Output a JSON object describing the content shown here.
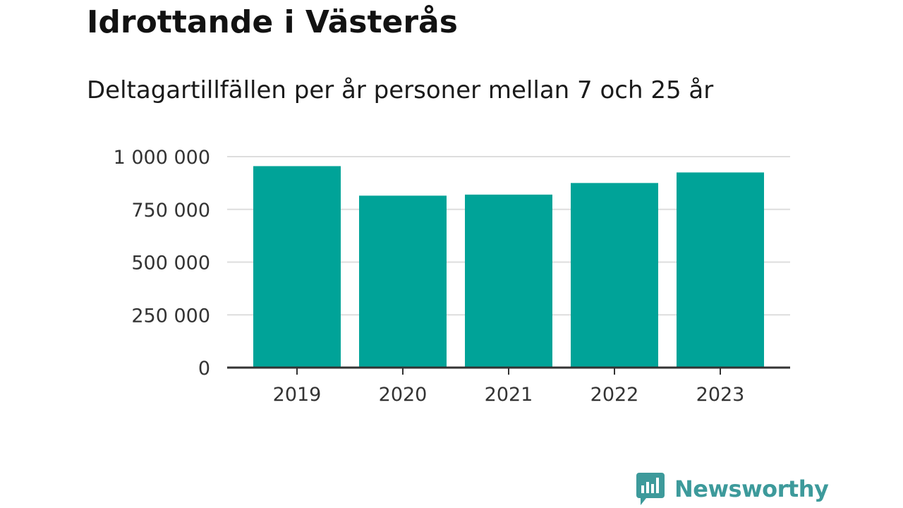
{
  "header": {
    "title": "Idrottande i Västerås",
    "subtitle": "Deltagartillfällen per år personer mellan 7 och 25 år"
  },
  "brand": {
    "name": "Newsworthy",
    "icon": "newsworthy-logo-icon",
    "color": "#3d9a9b"
  },
  "colors": {
    "bar": "#00a398",
    "grid": "#dddddd",
    "axis": "#333333"
  },
  "chart_data": {
    "type": "bar",
    "categories": [
      "2019",
      "2020",
      "2021",
      "2022",
      "2023"
    ],
    "values": [
      955000,
      815000,
      820000,
      875000,
      925000
    ],
    "ylim": [
      0,
      1000000
    ],
    "yticks": [
      0,
      250000,
      500000,
      750000,
      1000000
    ],
    "ytick_labels": [
      "0",
      "250 000",
      "500 000",
      "750 000",
      "1 000 000"
    ],
    "xlabel": "",
    "ylabel": "",
    "grid": true,
    "legend": "none"
  }
}
